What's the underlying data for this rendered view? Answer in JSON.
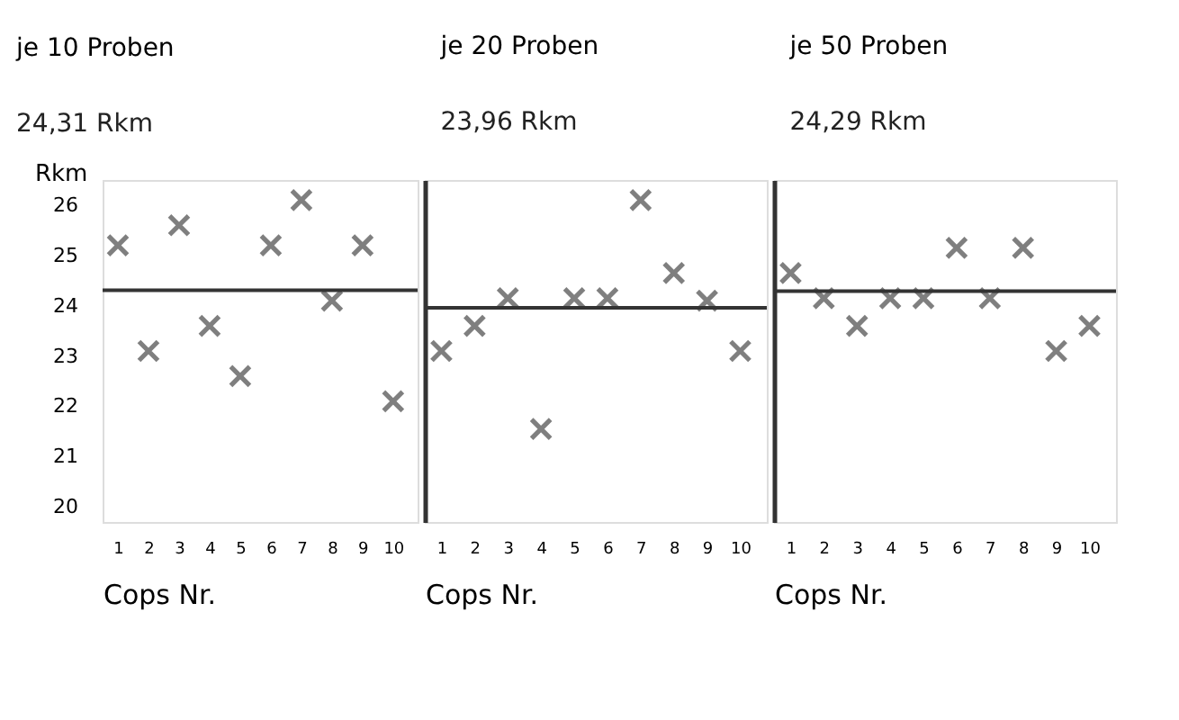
{
  "chart_data": [
    {
      "type": "scatter",
      "title": "je 10 Proben",
      "subtitle": "24,31 Rkm",
      "xlabel": "Cops Nr.",
      "ylabel": "Rkm",
      "x": [
        1,
        2,
        3,
        4,
        5,
        6,
        7,
        8,
        9,
        10
      ],
      "values": [
        25.2,
        23.1,
        25.6,
        23.6,
        22.6,
        25.2,
        26.1,
        24.1,
        25.2,
        22.1
      ],
      "color": "#4a4a4a",
      "marker": "cross",
      "xlim": [
        0.5,
        10.8
      ],
      "xticks": [
        1,
        2,
        3,
        4,
        5,
        6,
        7,
        8,
        9,
        10
      ],
      "ylim": [
        19.7,
        26.5
      ],
      "yticks": [
        20,
        21,
        22,
        23,
        24,
        25,
        26
      ],
      "ref_lines": [
        {
          "axis": "y",
          "value": 24.31,
          "color": "#333333"
        }
      ],
      "grid": false
    },
    {
      "type": "scatter",
      "title": "je 20 Proben",
      "subtitle": "23,96 Rkm",
      "xlabel": "Cops Nr.",
      "x": [
        1,
        2,
        3,
        4,
        5,
        6,
        7,
        8,
        9,
        10
      ],
      "values": [
        23.1,
        23.6,
        24.15,
        21.55,
        24.15,
        24.15,
        26.1,
        24.65,
        24.1,
        23.1
      ],
      "color": "#4a4a4a",
      "marker": "cross",
      "xlim": [
        0.5,
        10.8
      ],
      "xticks": [
        1,
        2,
        3,
        4,
        5,
        6,
        7,
        8,
        9,
        10
      ],
      "ylim": [
        19.7,
        26.5
      ],
      "tick_labels": "x",
      "ref_lines": [
        {
          "axis": "y",
          "value": 23.96,
          "color": "#333333"
        }
      ],
      "grid": false
    },
    {
      "type": "scatter",
      "title": "je 50 Proben",
      "subtitle": "24,29 Rkm",
      "xlabel": "Cops Nr.",
      "x": [
        1,
        2,
        3,
        4,
        5,
        6,
        7,
        8,
        9,
        10
      ],
      "values": [
        24.65,
        24.15,
        23.6,
        24.15,
        24.15,
        25.15,
        24.15,
        25.15,
        23.1,
        23.6
      ],
      "color": "#4a4a4a",
      "marker": "cross",
      "xlim": [
        0.5,
        10.8
      ],
      "xticks": [
        1,
        2,
        3,
        4,
        5,
        6,
        7,
        8,
        9,
        10
      ],
      "ylim": [
        19.7,
        26.5
      ],
      "tick_labels": "x",
      "ref_lines": [
        {
          "axis": "y",
          "value": 24.29,
          "color": "#333333"
        }
      ],
      "grid": false
    }
  ]
}
